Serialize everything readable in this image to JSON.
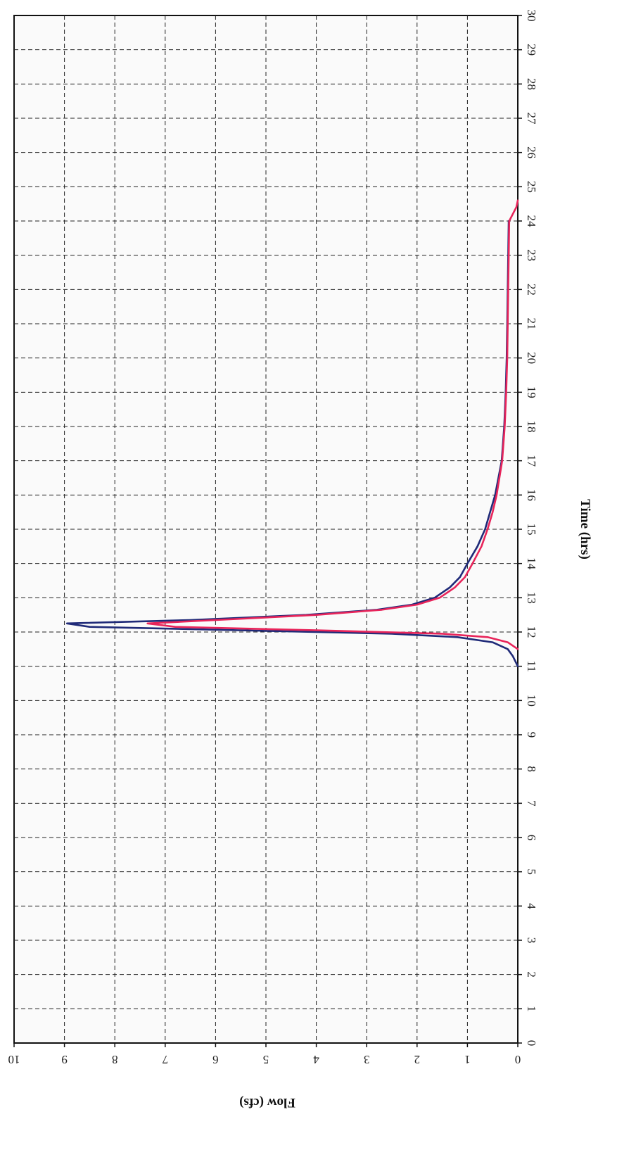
{
  "chart_data": {
    "type": "line",
    "rotation": "rotated 90° clockwise (time axis runs vertically along the right edge)",
    "title": "",
    "xlabel": "Time (hrs)",
    "ylabel": "Flow (cfs)",
    "xlim": [
      0,
      30
    ],
    "ylim": [
      0,
      10
    ],
    "x_ticks": [
      "0",
      "1",
      "2",
      "3",
      "4",
      "5",
      "6",
      "7",
      "8",
      "9",
      "10",
      "11",
      "12",
      "13",
      "14",
      "15",
      "16",
      "17",
      "18",
      "19",
      "20",
      "21",
      "22",
      "23",
      "24",
      "25",
      "26",
      "27",
      "28",
      "29",
      "30"
    ],
    "y_ticks": [
      "0",
      "1",
      "2",
      "3",
      "4",
      "5",
      "6",
      "7",
      "8",
      "9",
      "10"
    ],
    "grid": true,
    "legend": "none",
    "series": [
      {
        "color": "#1f2a78",
        "x": [
          11.0,
          11.3,
          11.5,
          11.7,
          11.85,
          11.95,
          12.05,
          12.15,
          12.25,
          12.35,
          12.5,
          12.65,
          12.8,
          13.0,
          13.3,
          13.6,
          14.0,
          14.5,
          15.0,
          15.5,
          16.0,
          17.0,
          18.0,
          19.0,
          20.0,
          21.0,
          22.0,
          23.0,
          24.0
        ],
        "y": [
          0.0,
          0.1,
          0.2,
          0.5,
          1.2,
          2.5,
          5.5,
          8.5,
          8.95,
          6.5,
          4.2,
          2.8,
          2.1,
          1.65,
          1.35,
          1.15,
          1.0,
          0.8,
          0.65,
          0.55,
          0.45,
          0.32,
          0.27,
          0.24,
          0.22,
          0.21,
          0.2,
          0.19,
          0.18
        ]
      },
      {
        "color": "#e8245a",
        "x": [
          11.5,
          11.7,
          11.85,
          11.95,
          12.05,
          12.15,
          12.25,
          12.35,
          12.5,
          12.65,
          12.8,
          13.0,
          13.3,
          13.6,
          14.0,
          14.5,
          15.0,
          15.5,
          16.0,
          17.0,
          18.0,
          19.0,
          20.0,
          21.0,
          22.0,
          23.0,
          24.0,
          24.2,
          24.4,
          24.6
        ],
        "y": [
          0.0,
          0.2,
          0.6,
          1.5,
          4.0,
          6.8,
          7.35,
          6.0,
          4.0,
          2.7,
          2.0,
          1.55,
          1.25,
          1.05,
          0.9,
          0.72,
          0.6,
          0.5,
          0.42,
          0.31,
          0.26,
          0.23,
          0.21,
          0.2,
          0.19,
          0.18,
          0.17,
          0.1,
          0.03,
          0.0
        ]
      }
    ]
  }
}
